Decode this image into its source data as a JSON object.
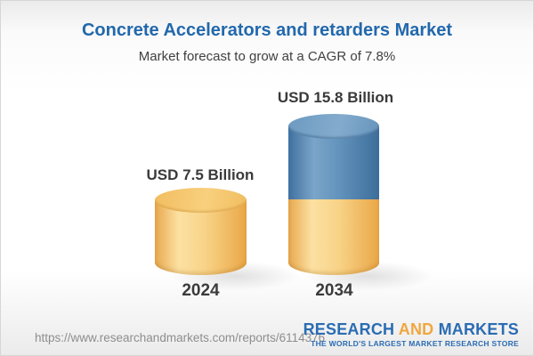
{
  "header": {
    "title": "Concrete Accelerators and retarders Market",
    "subtitle": "Market forecast to grow at a CAGR of 7.8%"
  },
  "chart_data": {
    "type": "bar",
    "variant": "3d-cylinder",
    "title": "Concrete Accelerators and retarders Market",
    "subtitle": "Market forecast to grow at a CAGR of 7.8%",
    "categories": [
      "2024",
      "2034"
    ],
    "values": [
      7.5,
      15.8
    ],
    "value_labels": [
      "USD 7.5 Billion",
      "USD 15.8 Billion"
    ],
    "unit": "USD Billion",
    "cagr_percent": 7.8,
    "legend": "none",
    "grid": false,
    "colors": {
      "base_segment": "#f5c878",
      "growth_segment": "#5a89b4",
      "title_text": "#2268ac",
      "label_text": "#3a3a3a"
    }
  },
  "footer": {
    "url": "https://www.researchandmarkets.com/reports/6114376",
    "logo": {
      "research": "RESEARCH",
      "and": "AND",
      "markets": "MARKETS",
      "tagline": "THE WORLD'S LARGEST MARKET RESEARCH STORE"
    }
  }
}
